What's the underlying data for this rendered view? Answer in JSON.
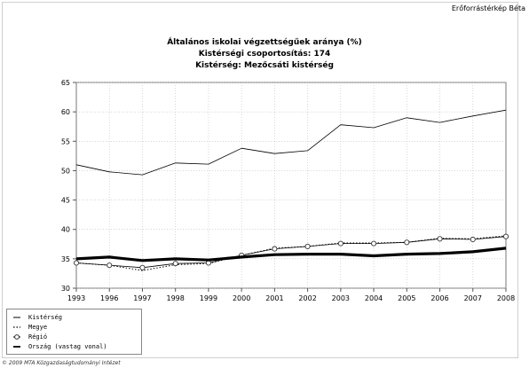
{
  "header": {
    "brand": "Erőforrástérkép Béta"
  },
  "footer": {
    "copyright": "© 2009 MTA Közgazdaságtudományi Intézet"
  },
  "chart_data": {
    "type": "line",
    "title": "Általános iskolai végzettségűek aránya (%)",
    "subtitle1": "Kistérségi csoportosítás: 174",
    "subtitle2": "Kistérség: Mezőcsáti kistérség",
    "x": [
      "1993",
      "1996",
      "1997",
      "1998",
      "1999",
      "2000",
      "2001",
      "2002",
      "2003",
      "2004",
      "2005",
      "2006",
      "2007",
      "2008"
    ],
    "yticks": [
      30,
      35,
      40,
      45,
      50,
      55,
      60,
      65
    ],
    "ylim": [
      30,
      65
    ],
    "grid": true,
    "legend_position": "bottom-left",
    "series": [
      {
        "name": "Kistérség",
        "values": [
          51.0,
          49.8,
          49.3,
          51.3,
          51.1,
          53.8,
          52.9,
          53.4,
          57.8,
          57.3,
          59.0,
          58.2,
          59.3,
          60.3
        ],
        "color": "#000000",
        "style": "thin"
      },
      {
        "name": "Megye",
        "values": [
          34.3,
          33.9,
          33.0,
          34.0,
          34.2,
          35.6,
          36.8,
          37.1,
          37.7,
          37.7,
          37.8,
          38.5,
          38.4,
          38.9
        ],
        "color": "#000000",
        "style": "dotted"
      },
      {
        "name": "Régió",
        "values": [
          34.3,
          33.9,
          33.5,
          34.2,
          34.3,
          35.6,
          36.7,
          37.1,
          37.6,
          37.6,
          37.8,
          38.4,
          38.3,
          38.8
        ],
        "color": "#000000",
        "style": "circle"
      },
      {
        "name": "Ország (vastag vonal)",
        "values": [
          35.0,
          35.3,
          34.7,
          35.0,
          34.8,
          35.3,
          35.7,
          35.8,
          35.8,
          35.5,
          35.8,
          35.9,
          36.2,
          36.8
        ],
        "color": "#000000",
        "style": "thick"
      }
    ]
  }
}
